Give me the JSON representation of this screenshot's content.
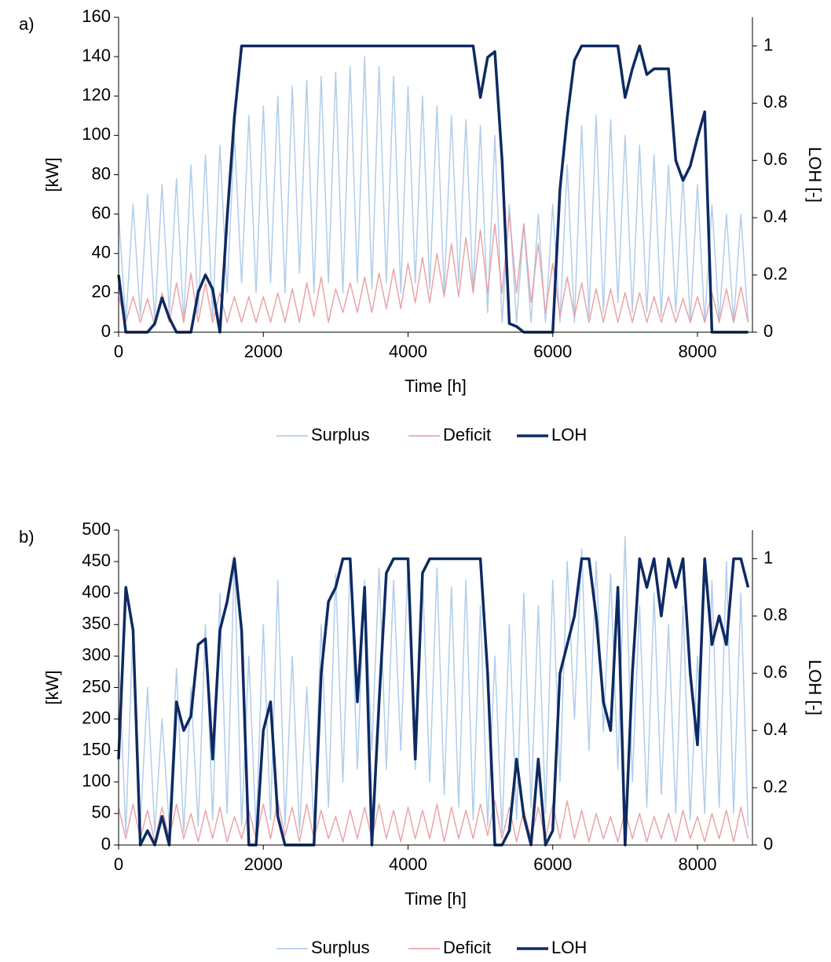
{
  "chart_data": [
    {
      "type": "line",
      "panel_label": "a)",
      "x_label": "Time [h]",
      "y_label": "[kW]",
      "y2_label": "LOH [-]",
      "xlim": [
        0,
        8760
      ],
      "xticks": [
        0,
        2000,
        4000,
        6000,
        8000
      ],
      "ylim": [
        0,
        160
      ],
      "yticks": [
        0,
        20,
        40,
        60,
        80,
        100,
        120,
        140,
        160
      ],
      "y2lim": [
        0,
        1.1
      ],
      "y2ticks": [
        0,
        0.2,
        0.4,
        0.6,
        0.8,
        1
      ],
      "x": [
        0,
        100,
        200,
        300,
        400,
        500,
        600,
        700,
        800,
        900,
        1000,
        1100,
        1200,
        1300,
        1400,
        1500,
        1600,
        1700,
        1800,
        1900,
        2000,
        2100,
        2200,
        2300,
        2400,
        2500,
        2600,
        2700,
        2800,
        2900,
        3000,
        3100,
        3200,
        3300,
        3400,
        3500,
        3600,
        3700,
        3800,
        3900,
        4000,
        4100,
        4200,
        4300,
        4400,
        4500,
        4600,
        4700,
        4800,
        4900,
        5000,
        5100,
        5200,
        5300,
        5400,
        5500,
        5600,
        5700,
        5800,
        5900,
        6000,
        6100,
        6200,
        6300,
        6400,
        6500,
        6600,
        6700,
        6800,
        6900,
        7000,
        7100,
        7200,
        7300,
        7400,
        7500,
        7600,
        7700,
        7800,
        7900,
        8000,
        8100,
        8200,
        8300,
        8400,
        8500,
        8600,
        8700
      ],
      "series": [
        {
          "name": "Surplus",
          "color": "#a9c8e8",
          "axis": "y",
          "values": [
            60,
            5,
            65,
            8,
            70,
            5,
            75,
            10,
            78,
            5,
            85,
            10,
            90,
            8,
            95,
            20,
            100,
            25,
            110,
            20,
            115,
            25,
            120,
            20,
            125,
            30,
            128,
            20,
            130,
            25,
            132,
            20,
            135,
            25,
            140,
            22,
            135,
            25,
            130,
            20,
            125,
            25,
            120,
            22,
            115,
            20,
            110,
            25,
            108,
            20,
            105,
            10,
            100,
            5,
            65,
            5,
            55,
            5,
            60,
            5,
            65,
            5,
            85,
            5,
            105,
            8,
            110,
            10,
            108,
            15,
            100,
            10,
            95,
            10,
            90,
            8,
            85,
            10,
            80,
            5,
            75,
            5,
            65,
            5,
            60,
            5,
            60,
            5
          ]
        },
        {
          "name": "Deficit",
          "color": "#e89a9e",
          "axis": "y",
          "values": [
            18,
            5,
            18,
            5,
            17,
            3,
            20,
            5,
            25,
            5,
            30,
            5,
            25,
            5,
            20,
            5,
            18,
            5,
            18,
            5,
            18,
            5,
            20,
            5,
            22,
            5,
            25,
            8,
            28,
            5,
            22,
            10,
            25,
            10,
            28,
            10,
            30,
            12,
            32,
            12,
            35,
            15,
            38,
            15,
            40,
            18,
            45,
            18,
            48,
            20,
            52,
            20,
            55,
            20,
            60,
            20,
            55,
            15,
            45,
            10,
            35,
            8,
            28,
            8,
            25,
            5,
            22,
            5,
            22,
            5,
            20,
            5,
            20,
            5,
            18,
            5,
            18,
            5,
            17,
            5,
            18,
            5,
            20,
            5,
            22,
            5,
            23,
            5
          ]
        },
        {
          "name": "LOH",
          "color": "#0d2a63",
          "axis": "y2",
          "values": [
            0.2,
            0,
            0,
            0,
            0,
            0.03,
            0.12,
            0.05,
            0,
            0,
            0,
            0.14,
            0.2,
            0.15,
            0,
            0.4,
            0.75,
            1,
            1,
            1,
            1,
            1,
            1,
            1,
            1,
            1,
            1,
            1,
            1,
            1,
            1,
            1,
            1,
            1,
            1,
            1,
            1,
            1,
            1,
            1,
            1,
            1,
            1,
            1,
            1,
            1,
            1,
            1,
            1,
            1,
            0.82,
            0.96,
            0.98,
            0.6,
            0.03,
            0.02,
            0,
            0,
            0,
            0,
            0,
            0.5,
            0.75,
            0.95,
            1,
            1,
            1,
            1,
            1,
            1,
            0.82,
            0.92,
            1,
            0.9,
            0.92,
            0.92,
            0.92,
            0.6,
            0.53,
            0.58,
            0.68,
            0.77,
            0,
            0,
            0,
            0,
            0,
            0
          ]
        }
      ]
    },
    {
      "type": "line",
      "panel_label": "b)",
      "x_label": "Time [h]",
      "y_label": "[kW]",
      "y2_label": "LOH [-]",
      "xlim": [
        0,
        8760
      ],
      "xticks": [
        0,
        2000,
        4000,
        6000,
        8000
      ],
      "ylim": [
        0,
        500
      ],
      "yticks": [
        0,
        50,
        100,
        150,
        200,
        250,
        300,
        350,
        400,
        450,
        500
      ],
      "y2lim": [
        0,
        1.1
      ],
      "y2ticks": [
        0,
        0.2,
        0.4,
        0.6,
        0.8,
        1
      ],
      "x": [
        0,
        100,
        200,
        300,
        400,
        500,
        600,
        700,
        800,
        900,
        1000,
        1100,
        1200,
        1300,
        1400,
        1500,
        1600,
        1700,
        1800,
        1900,
        2000,
        2100,
        2200,
        2300,
        2400,
        2500,
        2600,
        2700,
        2800,
        2900,
        3000,
        3100,
        3200,
        3300,
        3400,
        3500,
        3600,
        3700,
        3800,
        3900,
        4000,
        4100,
        4200,
        4300,
        4400,
        4500,
        4600,
        4700,
        4800,
        4900,
        5000,
        5100,
        5200,
        5300,
        5400,
        5500,
        5600,
        5700,
        5800,
        5900,
        6000,
        6100,
        6200,
        6300,
        6400,
        6500,
        6600,
        6700,
        6800,
        6900,
        7000,
        7100,
        7200,
        7300,
        7400,
        7500,
        7600,
        7700,
        7800,
        7900,
        8000,
        8100,
        8200,
        8300,
        8400,
        8500,
        8600,
        8700
      ],
      "series": [
        {
          "name": "Surplus",
          "color": "#a9c8e8",
          "axis": "y",
          "values": [
            300,
            20,
            350,
            30,
            250,
            20,
            200,
            30,
            280,
            20,
            250,
            30,
            350,
            40,
            400,
            50,
            460,
            30,
            300,
            20,
            350,
            40,
            420,
            30,
            300,
            20,
            250,
            30,
            350,
            60,
            430,
            100,
            450,
            120,
            420,
            150,
            440,
            120,
            420,
            150,
            450,
            120,
            430,
            100,
            440,
            80,
            410,
            60,
            420,
            40,
            380,
            30,
            300,
            20,
            350,
            40,
            400,
            60,
            380,
            50,
            420,
            100,
            450,
            200,
            470,
            150,
            450,
            180,
            430,
            120,
            490,
            100,
            380,
            60,
            400,
            80,
            350,
            50,
            380,
            40,
            300,
            50,
            420,
            60,
            450,
            50,
            400,
            30
          ]
        },
        {
          "name": "Deficit",
          "color": "#e89a9e",
          "axis": "y",
          "values": [
            60,
            10,
            65,
            10,
            55,
            5,
            60,
            10,
            65,
            10,
            50,
            5,
            55,
            10,
            60,
            5,
            45,
            10,
            55,
            10,
            65,
            10,
            70,
            15,
            60,
            5,
            65,
            10,
            55,
            10,
            45,
            5,
            55,
            10,
            60,
            10,
            65,
            10,
            55,
            5,
            60,
            10,
            55,
            10,
            65,
            5,
            60,
            10,
            55,
            10,
            65,
            15,
            70,
            10,
            60,
            5,
            55,
            10,
            60,
            10,
            65,
            10,
            70,
            10,
            55,
            5,
            50,
            10,
            45,
            5,
            55,
            10,
            50,
            5,
            45,
            10,
            50,
            5,
            55,
            10,
            45,
            5,
            50,
            10,
            55,
            5,
            60,
            10
          ]
        },
        {
          "name": "LOH",
          "color": "#0d2a63",
          "axis": "y2",
          "values": [
            0.3,
            0.9,
            0.75,
            0,
            0.05,
            0,
            0.1,
            0,
            0.5,
            0.4,
            0.45,
            0.7,
            0.72,
            0.3,
            0.75,
            0.85,
            1,
            0.75,
            0,
            0,
            0.4,
            0.5,
            0.1,
            0,
            0,
            0,
            0,
            0,
            0.6,
            0.85,
            0.9,
            1,
            1,
            0.5,
            0.9,
            0,
            0.5,
            0.95,
            1,
            1,
            1,
            0.3,
            0.95,
            1,
            1,
            1,
            1,
            1,
            1,
            1,
            1,
            0.6,
            0,
            0,
            0.05,
            0.3,
            0.1,
            0,
            0.3,
            0,
            0.05,
            0.6,
            0.7,
            0.8,
            1,
            1,
            0.8,
            0.5,
            0.4,
            0.9,
            0,
            0.6,
            1,
            0.9,
            1,
            0.8,
            1,
            0.9,
            1,
            0.6,
            0.35,
            1,
            0.7,
            0.8,
            0.7,
            1,
            1,
            0.9
          ]
        }
      ]
    }
  ]
}
